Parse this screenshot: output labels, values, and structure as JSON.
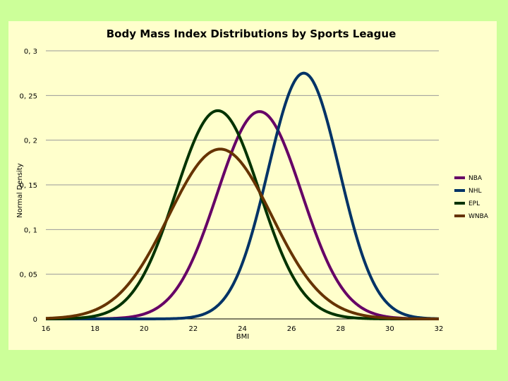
{
  "chart_data": {
    "type": "line",
    "title": "Body Mass Index Distributions by Sports League",
    "xlabel": "BMI",
    "ylabel": "Normal Density",
    "xlim": [
      16,
      32
    ],
    "ylim": [
      0,
      0.3
    ],
    "x_ticks": [
      "16",
      "18",
      "20",
      "22",
      "24",
      "26",
      "28",
      "30",
      "32"
    ],
    "y_ticks": [
      "0",
      "0, 05",
      "0, 1",
      "0, 15",
      "0, 2",
      "0, 25",
      "0, 3"
    ],
    "grid": "horizontal",
    "legend_position": "right",
    "series": [
      {
        "name": "NBA",
        "color": "#660066",
        "mean": 24.7,
        "peak": 0.232,
        "points": [
          [
            16,
            0.0
          ],
          [
            18,
            0.0
          ],
          [
            20,
            0.003
          ],
          [
            22,
            0.036
          ],
          [
            23,
            0.121
          ],
          [
            24,
            0.211
          ],
          [
            24.7,
            0.232
          ],
          [
            25,
            0.229
          ],
          [
            26,
            0.162
          ],
          [
            27,
            0.075
          ],
          [
            28,
            0.023
          ],
          [
            29,
            0.005
          ],
          [
            30,
            0.0
          ],
          [
            32,
            0.0
          ]
        ]
      },
      {
        "name": "NHL",
        "color": "#003366",
        "mean": 26.5,
        "peak": 0.275,
        "points": [
          [
            16,
            0.0
          ],
          [
            20,
            0.0
          ],
          [
            22,
            0.0
          ],
          [
            23,
            0.013
          ],
          [
            24,
            0.049
          ],
          [
            25,
            0.136
          ],
          [
            26,
            0.241
          ],
          [
            26.5,
            0.275
          ],
          [
            27,
            0.256
          ],
          [
            28,
            0.162
          ],
          [
            29,
            0.063
          ],
          [
            30,
            0.016
          ],
          [
            31,
            0.003
          ],
          [
            32,
            0.0
          ]
        ]
      },
      {
        "name": "EPL",
        "color": "#003300",
        "mean": 23.0,
        "peak": 0.233,
        "points": [
          [
            16,
            0.0
          ],
          [
            18,
            0.005
          ],
          [
            19,
            0.021
          ],
          [
            20,
            0.059
          ],
          [
            21,
            0.118
          ],
          [
            22,
            0.189
          ],
          [
            23,
            0.233
          ],
          [
            24,
            0.188
          ],
          [
            25,
            0.117
          ],
          [
            26,
            0.058
          ],
          [
            27,
            0.02
          ],
          [
            28,
            0.005
          ],
          [
            30,
            0.0
          ],
          [
            32,
            0.0
          ]
        ]
      },
      {
        "name": "WNBA",
        "color": "#663300",
        "mean": 23.1,
        "peak": 0.19,
        "points": [
          [
            16,
            0.002
          ],
          [
            17,
            0.008
          ],
          [
            18,
            0.023
          ],
          [
            19,
            0.05
          ],
          [
            20,
            0.089
          ],
          [
            21,
            0.133
          ],
          [
            22,
            0.172
          ],
          [
            23.1,
            0.19
          ],
          [
            24,
            0.176
          ],
          [
            25,
            0.141
          ],
          [
            26,
            0.096
          ],
          [
            27,
            0.056
          ],
          [
            28,
            0.028
          ],
          [
            30,
            0.004
          ],
          [
            32,
            0.0
          ]
        ]
      }
    ]
  }
}
